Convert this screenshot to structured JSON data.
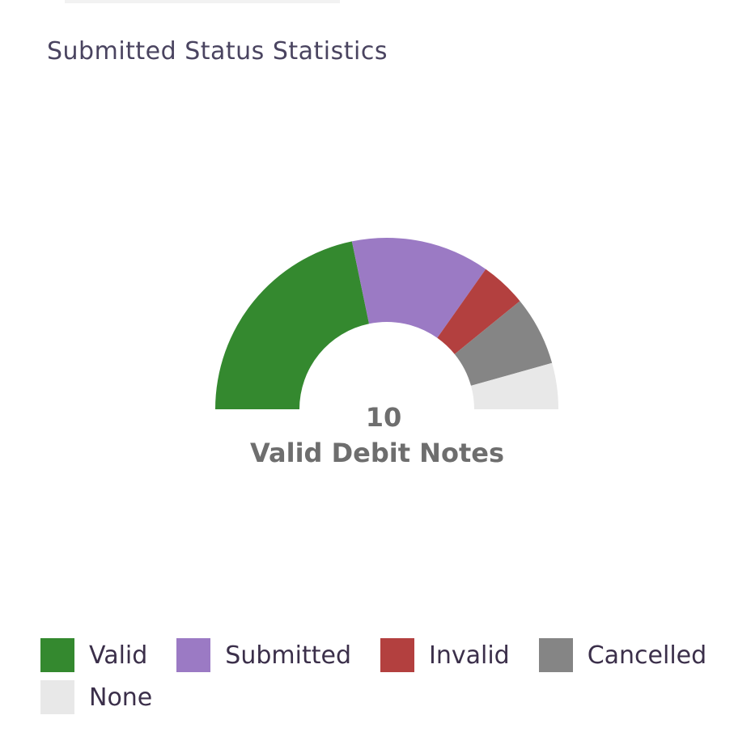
{
  "card": {
    "title": "Submitted Status Statistics"
  },
  "center": {
    "value": "10",
    "label": "Valid Debit Notes"
  },
  "chart_data": {
    "type": "pie",
    "variant": "semi-donut",
    "title": "Submitted Status Statistics",
    "categories": [
      "Valid",
      "Submitted",
      "Invalid",
      "Cancelled",
      "None"
    ],
    "values": [
      10,
      6,
      2,
      3,
      2
    ],
    "colors": [
      "#34892f",
      "#9b7ac4",
      "#b3403f",
      "#858585",
      "#e8e8e8"
    ],
    "legend_position": "bottom"
  }
}
